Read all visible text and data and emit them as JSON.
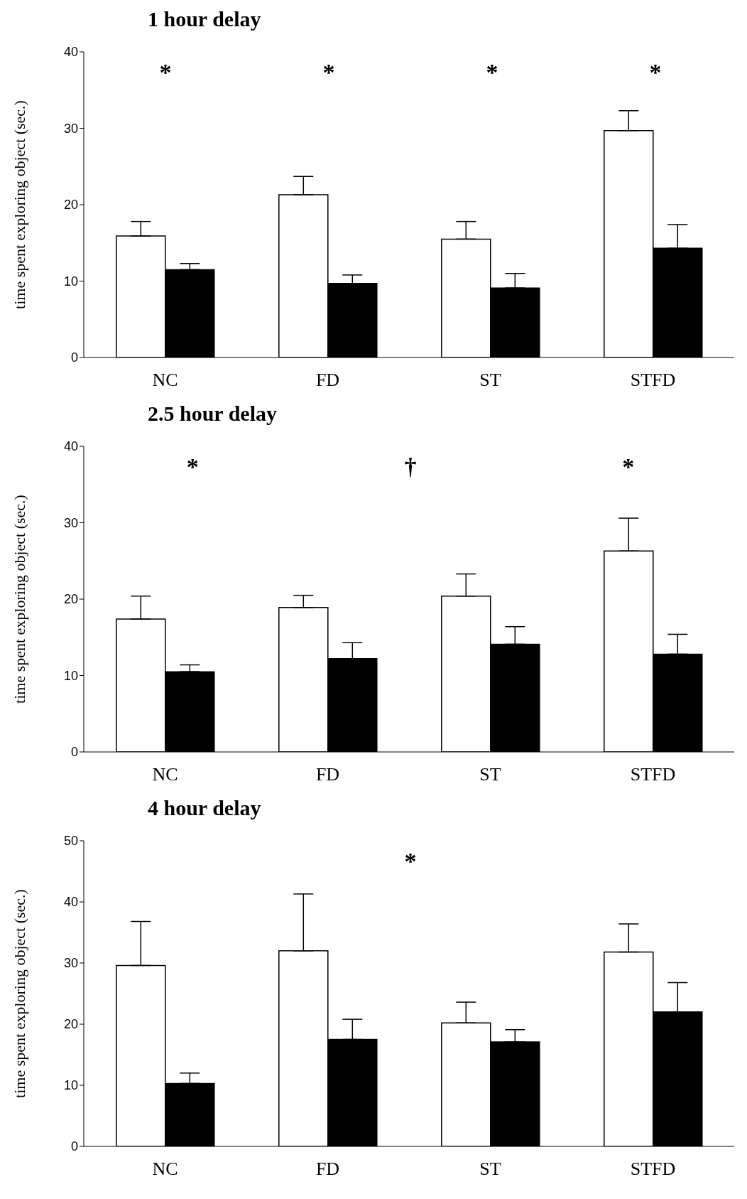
{
  "chart_data": [
    {
      "type": "bar",
      "title": "1 hour delay",
      "ylabel": "time spent exploring object (sec.)",
      "categories": [
        "NC",
        "FD",
        "ST",
        "STFD"
      ],
      "ylim": [
        0,
        40
      ],
      "yticks": [
        0,
        10,
        20,
        30,
        40
      ],
      "series": [
        {
          "color": "#ffffff",
          "values": [
            15.9,
            21.3,
            15.5,
            29.7
          ],
          "errors": [
            [
              15.9,
              17.8
            ],
            [
              21.3,
              23.7
            ],
            [
              15.5,
              17.8
            ],
            [
              29.7,
              32.3
            ]
          ]
        },
        {
          "color": "#000000",
          "values": [
            11.5,
            9.7,
            9.1,
            14.3
          ],
          "errors": [
            [
              11.5,
              12.3
            ],
            [
              9.7,
              10.8
            ],
            [
              9.1,
              11.0
            ],
            [
              14.3,
              17.4
            ]
          ]
        }
      ],
      "annotations": [
        "*",
        "*",
        "*",
        "*"
      ]
    },
    {
      "type": "bar",
      "title": "2.5 hour delay",
      "ylabel": "time spent exploring object (sec.)",
      "categories": [
        "NC",
        "FD",
        "ST",
        "STFD"
      ],
      "ylim": [
        0,
        40
      ],
      "yticks": [
        0,
        10,
        20,
        30,
        40
      ],
      "series": [
        {
          "color": "#ffffff",
          "values": [
            17.4,
            18.9,
            20.4,
            26.3
          ],
          "errors": [
            [
              17.4,
              20.4
            ],
            [
              18.9,
              20.5
            ],
            [
              20.4,
              23.3
            ],
            [
              26.3,
              30.6
            ]
          ]
        },
        {
          "color": "#000000",
          "values": [
            10.5,
            12.2,
            14.1,
            12.8
          ],
          "errors": [
            [
              10.5,
              11.4
            ],
            [
              12.2,
              14.3
            ],
            [
              14.1,
              16.4
            ],
            [
              12.8,
              15.4
            ]
          ]
        }
      ],
      "annotations": [
        "*",
        "†",
        "*"
      ]
    },
    {
      "type": "bar",
      "title": "4 hour delay",
      "ylabel": "time spent exploring object (sec.)",
      "categories": [
        "NC",
        "FD",
        "ST",
        "STFD"
      ],
      "ylim": [
        0,
        50
      ],
      "yticks": [
        0,
        10,
        20,
        30,
        40,
        50
      ],
      "series": [
        {
          "color": "#ffffff",
          "values": [
            29.6,
            32.0,
            20.2,
            31.8
          ],
          "errors": [
            [
              29.6,
              36.8
            ],
            [
              32.0,
              41.3
            ],
            [
              20.2,
              23.6
            ],
            [
              31.8,
              36.4
            ]
          ]
        },
        {
          "color": "#000000",
          "values": [
            10.3,
            17.5,
            17.1,
            22.0
          ],
          "errors": [
            [
              10.3,
              12.0
            ],
            [
              17.5,
              20.8
            ],
            [
              17.1,
              19.1
            ],
            [
              22.0,
              26.8
            ]
          ]
        }
      ],
      "annotations": [
        "*"
      ]
    }
  ]
}
